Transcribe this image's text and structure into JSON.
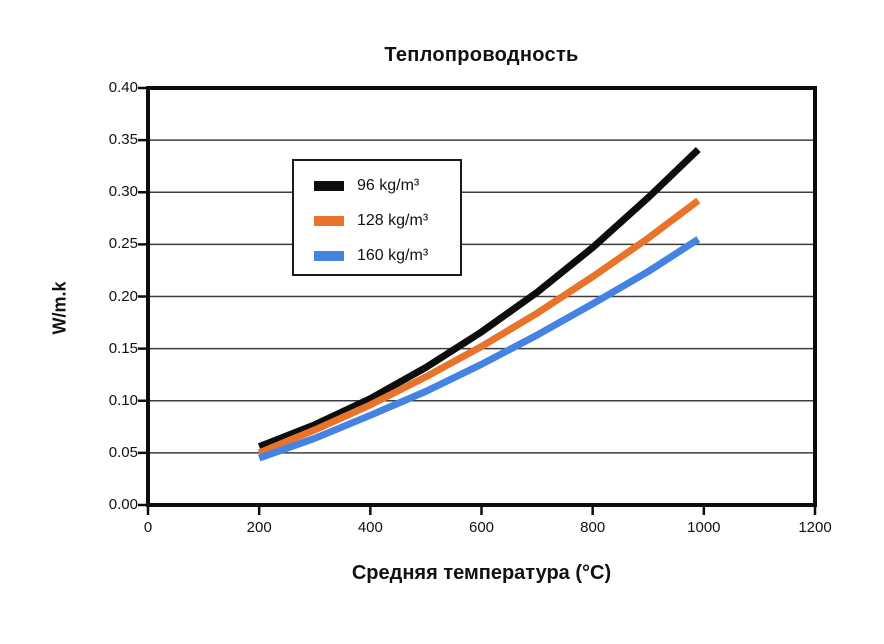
{
  "chart_data": {
    "type": "line",
    "title": "Теплопроводность",
    "xlabel": "Средняя температура (°C)",
    "ylabel": "W/m.k",
    "x_axis": {
      "min": 0,
      "max": 1200,
      "tick_labels": [
        "0",
        "200",
        "400",
        "600",
        "800",
        "1000",
        "1200"
      ],
      "tick_values": [
        0,
        200,
        400,
        600,
        800,
        1000,
        1200
      ]
    },
    "y_axis": {
      "min": 0.0,
      "max": 0.4,
      "tick_labels": [
        "0.00",
        "0.05",
        "0.10",
        "0.15",
        "0.20",
        "0.25",
        "0.30",
        "0.35",
        "0.40"
      ],
      "tick_values": [
        0.0,
        0.05,
        0.1,
        0.15,
        0.2,
        0.25,
        0.3,
        0.35,
        0.4
      ]
    },
    "grid": "horizontal",
    "legend_position": "upper-left-inside",
    "x": [
      200,
      300,
      400,
      500,
      600,
      700,
      800,
      900,
      990
    ],
    "series": [
      {
        "name": "96 kg/m³",
        "color": "#0d0d0d",
        "values": [
          0.056,
          0.077,
          0.102,
          0.132,
          0.166,
          0.204,
          0.247,
          0.295,
          0.341
        ]
      },
      {
        "name": "128 kg/m³",
        "color": "#e8742c",
        "values": [
          0.05,
          0.072,
          0.096,
          0.123,
          0.152,
          0.184,
          0.219,
          0.256,
          0.292
        ]
      },
      {
        "name": "160 kg/m³",
        "color": "#4483e2",
        "values": [
          0.045,
          0.064,
          0.086,
          0.109,
          0.135,
          0.163,
          0.193,
          0.224,
          0.255
        ]
      }
    ],
    "colors": {
      "frame": "#0d0d0d",
      "gridline": "#3d3d3d",
      "background": "#ffffff",
      "text": "#121212"
    }
  }
}
